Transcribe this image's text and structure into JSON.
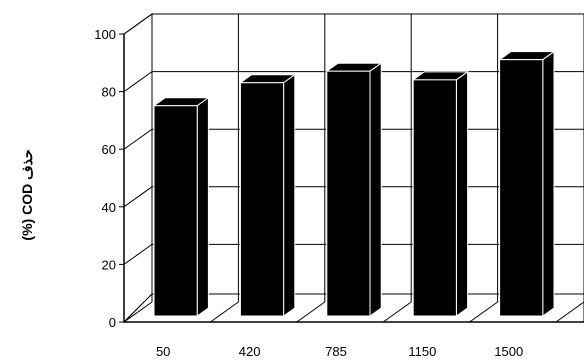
{
  "chart_data": {
    "type": "bar",
    "style": "3d",
    "title": "",
    "xlabel": "",
    "ylabel": "حذف COD (%)",
    "categories": [
      "50",
      "420",
      "785",
      "1150",
      "1500"
    ],
    "values": [
      73,
      81,
      85,
      82,
      89
    ],
    "ylim": [
      0,
      100
    ],
    "yticks": [
      0,
      20,
      40,
      60,
      80,
      100
    ],
    "grid": true,
    "legend": "none",
    "bar_color": "#000000"
  }
}
